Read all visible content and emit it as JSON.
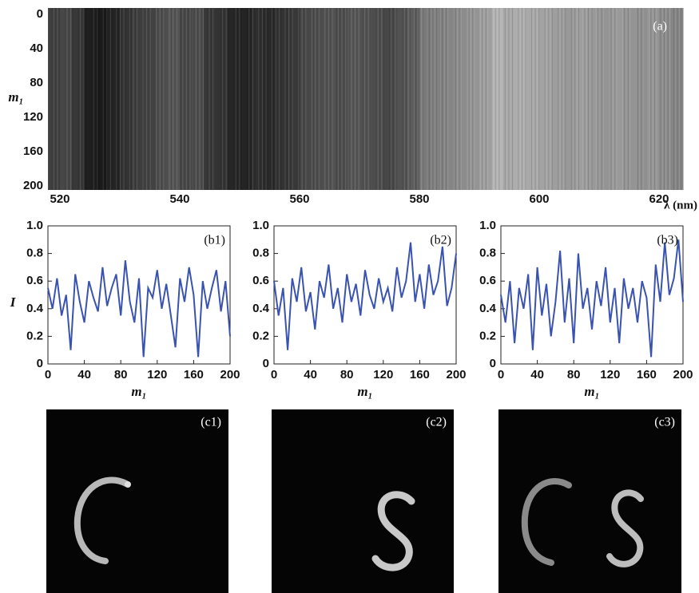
{
  "chart_data": [
    {
      "type": "heatmap",
      "label": "(a)",
      "xlabel": "λ (nm)",
      "ylabel": "m₁",
      "colormap": "gray",
      "yreverse": true,
      "xlim": [
        518,
        624
      ],
      "ylim": [
        0,
        200
      ],
      "xticks": [
        520,
        540,
        560,
        580,
        600,
        620
      ],
      "yticks": [
        0,
        40,
        80,
        120,
        160,
        200
      ],
      "x": [
        519,
        521,
        523,
        525,
        527,
        529,
        531,
        533,
        535,
        537,
        539,
        541,
        543,
        545,
        547,
        549,
        551,
        553,
        555,
        557,
        559,
        561,
        563,
        565,
        567,
        569,
        571,
        573,
        575,
        577,
        579,
        581,
        583,
        585,
        587,
        589,
        591,
        593,
        595,
        597,
        599,
        601,
        603,
        605,
        607,
        609,
        611,
        613,
        615,
        617,
        619,
        621,
        623
      ],
      "values": [
        0.25,
        0.28,
        0.22,
        0.12,
        0.1,
        0.14,
        0.2,
        0.24,
        0.26,
        0.3,
        0.33,
        0.28,
        0.3,
        0.22,
        0.2,
        0.15,
        0.14,
        0.18,
        0.16,
        0.2,
        0.22,
        0.28,
        0.3,
        0.32,
        0.3,
        0.34,
        0.32,
        0.3,
        0.28,
        0.32,
        0.36,
        0.48,
        0.5,
        0.52,
        0.55,
        0.58,
        0.62,
        0.7,
        0.66,
        0.68,
        0.66,
        0.64,
        0.62,
        0.6,
        0.62,
        0.6,
        0.58,
        0.6,
        0.58,
        0.56,
        0.58,
        0.55,
        0.52
      ]
    },
    {
      "type": "line",
      "label": "(b1)",
      "xlabel": "m₁",
      "ylabel": "I",
      "xlim": [
        0,
        200
      ],
      "ylim": [
        0,
        1
      ],
      "xticks": [
        0,
        40,
        80,
        120,
        160,
        200
      ],
      "yticks": [
        0,
        0.2,
        0.4,
        0.6,
        0.8,
        {
          "value": 1,
          "label": "1.0"
        }
      ],
      "x": [
        0,
        5,
        10,
        15,
        20,
        25,
        30,
        35,
        40,
        45,
        50,
        55,
        60,
        65,
        70,
        75,
        80,
        85,
        90,
        95,
        100,
        105,
        110,
        115,
        120,
        125,
        130,
        135,
        140,
        145,
        150,
        155,
        160,
        165,
        170,
        175,
        180,
        185,
        190,
        195,
        200
      ],
      "series": [
        {
          "color": "#3a53b0",
          "values": [
            0.55,
            0.4,
            0.62,
            0.35,
            0.5,
            0.1,
            0.65,
            0.45,
            0.3,
            0.6,
            0.48,
            0.38,
            0.7,
            0.42,
            0.55,
            0.65,
            0.35,
            0.75,
            0.45,
            0.3,
            0.62,
            0.05,
            0.55,
            0.48,
            0.68,
            0.4,
            0.58,
            0.35,
            0.12,
            0.62,
            0.45,
            0.7,
            0.5,
            0.05,
            0.6,
            0.4,
            0.55,
            0.68,
            0.38,
            0.6,
            0.2
          ]
        }
      ]
    },
    {
      "type": "line",
      "label": "(b2)",
      "xlabel": "m₁",
      "xlim": [
        0,
        200
      ],
      "ylim": [
        0,
        1
      ],
      "xticks": [
        0,
        40,
        80,
        120,
        160,
        200
      ],
      "yticks": [
        0,
        0.2,
        0.4,
        0.6,
        0.8,
        {
          "value": 1,
          "label": "1.0"
        }
      ],
      "x": [
        0,
        5,
        10,
        15,
        20,
        25,
        30,
        35,
        40,
        45,
        50,
        55,
        60,
        65,
        70,
        75,
        80,
        85,
        90,
        95,
        100,
        105,
        110,
        115,
        120,
        125,
        130,
        135,
        140,
        145,
        150,
        155,
        160,
        165,
        170,
        175,
        180,
        185,
        190,
        195,
        200
      ],
      "series": [
        {
          "color": "#3a53b0",
          "values": [
            0.6,
            0.35,
            0.55,
            0.1,
            0.62,
            0.45,
            0.7,
            0.38,
            0.52,
            0.25,
            0.6,
            0.48,
            0.72,
            0.4,
            0.55,
            0.3,
            0.65,
            0.45,
            0.58,
            0.35,
            0.68,
            0.5,
            0.4,
            0.62,
            0.45,
            0.55,
            0.38,
            0.7,
            0.48,
            0.6,
            0.88,
            0.45,
            0.65,
            0.4,
            0.72,
            0.5,
            0.6,
            0.85,
            0.42,
            0.55,
            0.8
          ]
        }
      ]
    },
    {
      "type": "line",
      "label": "(b3)",
      "xlabel": "m₁",
      "xlim": [
        0,
        200
      ],
      "ylim": [
        0,
        1
      ],
      "xticks": [
        0,
        40,
        80,
        120,
        160,
        200
      ],
      "yticks": [
        0,
        0.2,
        0.4,
        0.6,
        0.8,
        {
          "value": 1,
          "label": "1.0"
        }
      ],
      "x": [
        0,
        5,
        10,
        15,
        20,
        25,
        30,
        35,
        40,
        45,
        50,
        55,
        60,
        65,
        70,
        75,
        80,
        85,
        90,
        95,
        100,
        105,
        110,
        115,
        120,
        125,
        130,
        135,
        140,
        145,
        150,
        155,
        160,
        165,
        170,
        175,
        180,
        185,
        190,
        195,
        200
      ],
      "series": [
        {
          "color": "#3a53b0",
          "values": [
            0.5,
            0.3,
            0.6,
            0.15,
            0.55,
            0.4,
            0.65,
            0.1,
            0.7,
            0.35,
            0.58,
            0.2,
            0.45,
            0.82,
            0.3,
            0.62,
            0.15,
            0.8,
            0.4,
            0.55,
            0.25,
            0.6,
            0.42,
            0.7,
            0.3,
            0.55,
            0.15,
            0.62,
            0.4,
            0.55,
            0.3,
            0.6,
            0.48,
            0.05,
            0.72,
            0.45,
            0.88,
            0.5,
            0.62,
            0.9,
            0.45
          ]
        }
      ]
    }
  ],
  "image_panels": [
    {
      "label": "(c1)"
    },
    {
      "label": "(c2)"
    },
    {
      "label": "(c3)"
    }
  ]
}
